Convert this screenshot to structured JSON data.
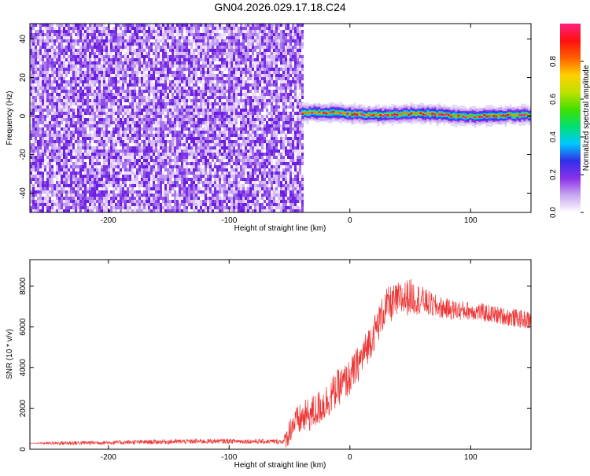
{
  "title": "GN04.2026.029.17.18.C24",
  "chart_data": [
    {
      "type": "heatmap",
      "xlabel": "Height of straight line (km)",
      "ylabel": "Frequency (Hz)",
      "xlim": [
        -265,
        150
      ],
      "ylim": [
        -50,
        48
      ],
      "xticks": [
        -200,
        -100,
        0,
        100
      ],
      "yticks": [
        -40,
        -20,
        0,
        20,
        40
      ],
      "grid": false,
      "colorbar": {
        "label": "Normalized spectral amplitude",
        "range": [
          0,
          1
        ],
        "ticks": [
          0.0,
          0.2,
          0.4,
          0.6,
          0.8
        ],
        "colormap": [
          "#ffffff",
          "#c8a8f0",
          "#8a30e8",
          "#3030e8",
          "#00c8ff",
          "#00e070",
          "#40e000",
          "#c0e000",
          "#ffd000",
          "#ff6000",
          "#ff1010",
          "#ff2080"
        ]
      },
      "regions": [
        {
          "x": [
            -265,
            -40
          ],
          "y": [
            -50,
            48
          ],
          "pattern": "speckled noise",
          "amplitude": [
            0.0,
            0.2
          ]
        },
        {
          "x": [
            -40,
            150
          ],
          "y": [
            -3,
            4
          ],
          "pattern": "narrow band near 0 Hz",
          "amplitude": [
            0.3,
            1.0
          ]
        }
      ]
    },
    {
      "type": "line",
      "xlabel": "Height of straight line (km)",
      "ylabel": "SNR (10 * v/v)",
      "xlim": [
        -265,
        150
      ],
      "ylim": [
        0,
        9300
      ],
      "xticks": [
        -200,
        -100,
        0,
        100
      ],
      "yticks": [
        0,
        2000,
        4000,
        6000,
        8000
      ],
      "grid": false,
      "series": [
        {
          "color": "#ee3333",
          "x": [
            -265,
            -240,
            -200,
            -150,
            -100,
            -70,
            -55,
            -52,
            -48,
            -40,
            -30,
            -20,
            -10,
            0,
            10,
            20,
            30,
            40,
            50,
            60,
            70,
            80,
            90,
            100,
            110,
            120,
            130,
            140,
            150
          ],
          "y": [
            300,
            300,
            330,
            370,
            400,
            380,
            380,
            600,
            1200,
            1500,
            1800,
            2300,
            3000,
            3500,
            4500,
            5700,
            7000,
            7300,
            7500,
            7300,
            7000,
            6900,
            6800,
            6800,
            6700,
            6600,
            6500,
            6400,
            6300
          ],
          "noise": [
            0,
            100,
            100,
            120,
            120,
            120,
            120,
            600,
            700,
            800,
            900,
            900,
            900,
            900,
            900,
            900,
            900,
            900,
            900,
            700,
            600,
            500,
            500,
            450,
            450,
            450,
            450,
            450,
            450
          ]
        }
      ]
    }
  ]
}
